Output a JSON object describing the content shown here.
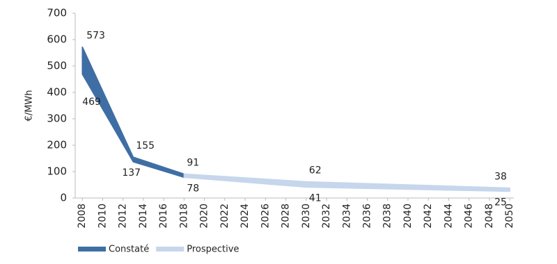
{
  "chart_data": {
    "type": "band",
    "y_label": "€/MWh",
    "xlim": [
      2007.3,
      2050.4
    ],
    "xticks": [
      2008,
      2010,
      2012,
      2014,
      2016,
      2018,
      2020,
      2022,
      2024,
      2026,
      2028,
      2030,
      2032,
      2034,
      2036,
      2038,
      2040,
      2042,
      2044,
      2046,
      2048,
      2050
    ],
    "ylim": [
      0,
      700
    ],
    "yticks": [
      0,
      100,
      200,
      300,
      400,
      500,
      600,
      700
    ],
    "grid": false,
    "legend": "bottom-left",
    "series": [
      {
        "name": "Constaté",
        "color": "#3e6ea4",
        "x": [
          2008,
          2013,
          2018
        ],
        "high": [
          573,
          155,
          91
        ],
        "low": [
          469,
          137,
          78
        ]
      },
      {
        "name": "Prospective",
        "color": "#c6d6ec",
        "x": [
          2018,
          2030,
          2050
        ],
        "high": [
          91,
          62,
          38
        ],
        "low": [
          78,
          41,
          25
        ]
      }
    ]
  }
}
